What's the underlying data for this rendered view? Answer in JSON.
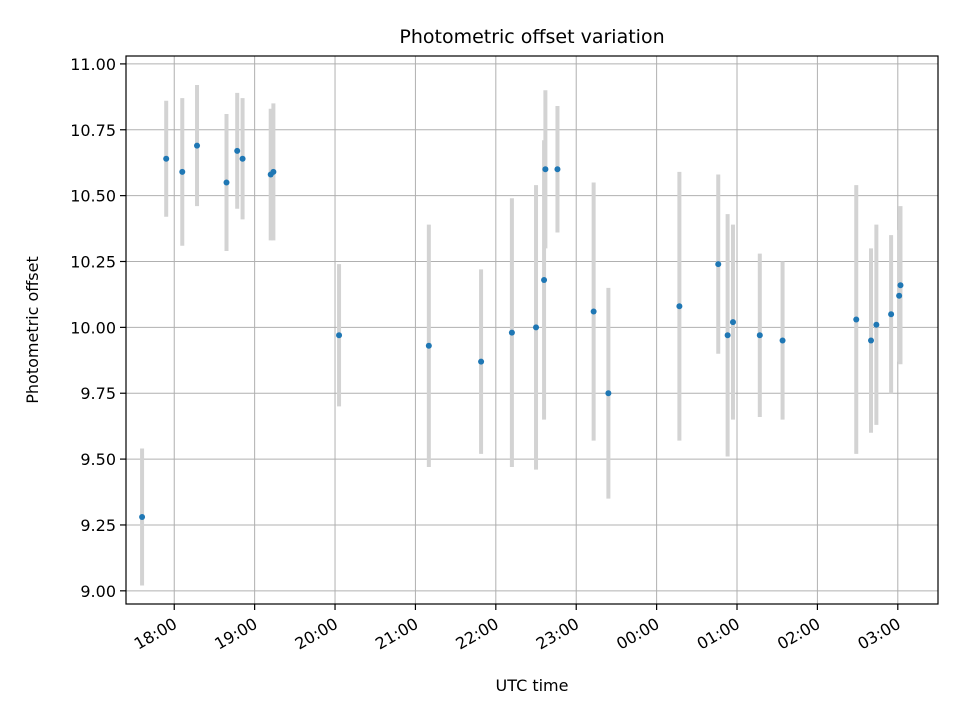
{
  "chart_data": {
    "type": "scatter",
    "title": "Photometric offset variation",
    "xlabel": "UTC time",
    "ylabel": "Photometric offset",
    "x_unit": "hours",
    "x_tick_labels": [
      "18:00",
      "19:00",
      "20:00",
      "21:00",
      "22:00",
      "23:00",
      "00:00",
      "01:00",
      "02:00",
      "03:00"
    ],
    "y_tick_labels": [
      "9.00",
      "9.25",
      "9.50",
      "9.75",
      "10.00",
      "10.25",
      "10.50",
      "10.75",
      "11.00"
    ],
    "ylim": [
      8.95,
      11.03
    ],
    "xlim": [
      "17:24",
      "03:30"
    ],
    "grid": true,
    "colors": {
      "point": "#1f77b4",
      "errorbar": "#d3d3d3",
      "grid": "#b0b0b0"
    },
    "points": [
      {
        "t": "17:36",
        "y": 9.28,
        "err": 0.26
      },
      {
        "t": "17:54",
        "y": 10.64,
        "err": 0.22
      },
      {
        "t": "18:06",
        "y": 10.59,
        "err": 0.28
      },
      {
        "t": "18:17",
        "y": 10.69,
        "err": 0.23
      },
      {
        "t": "18:39",
        "y": 10.55,
        "err": 0.26
      },
      {
        "t": "18:47",
        "y": 10.67,
        "err": 0.22
      },
      {
        "t": "18:51",
        "y": 10.64,
        "err": 0.23
      },
      {
        "t": "19:12",
        "y": 10.58,
        "err": 0.25
      },
      {
        "t": "19:14",
        "y": 10.59,
        "err": 0.26
      },
      {
        "t": "20:03",
        "y": 9.97,
        "err": 0.27
      },
      {
        "t": "21:10",
        "y": 9.93,
        "err": 0.46
      },
      {
        "t": "21:49",
        "y": 9.87,
        "err": 0.35
      },
      {
        "t": "22:12",
        "y": 9.98,
        "err": 0.51
      },
      {
        "t": "22:30",
        "y": 10.0,
        "err": 0.54
      },
      {
        "t": "22:36",
        "y": 10.18,
        "err": 0.53
      },
      {
        "t": "22:37",
        "y": 10.6,
        "err": 0.3
      },
      {
        "t": "22:46",
        "y": 10.6,
        "err": 0.24
      },
      {
        "t": "23:13",
        "y": 10.06,
        "err": 0.49
      },
      {
        "t": "23:24",
        "y": 9.75,
        "err": 0.4
      },
      {
        "t": "00:17",
        "y": 10.08,
        "err": 0.51
      },
      {
        "t": "00:46",
        "y": 10.24,
        "err": 0.34
      },
      {
        "t": "00:53",
        "y": 9.97,
        "err": 0.46
      },
      {
        "t": "00:57",
        "y": 10.02,
        "err": 0.37
      },
      {
        "t": "01:17",
        "y": 9.97,
        "err": 0.31
      },
      {
        "t": "01:34",
        "y": 9.95,
        "err": 0.3
      },
      {
        "t": "02:29",
        "y": 10.03,
        "err": 0.51
      },
      {
        "t": "02:40",
        "y": 9.95,
        "err": 0.35
      },
      {
        "t": "02:44",
        "y": 10.01,
        "err": 0.38
      },
      {
        "t": "02:55",
        "y": 10.05,
        "err": 0.3
      },
      {
        "t": "03:01",
        "y": 10.12,
        "err": 0.25
      },
      {
        "t": "03:02",
        "y": 10.16,
        "err": 0.3
      }
    ]
  }
}
